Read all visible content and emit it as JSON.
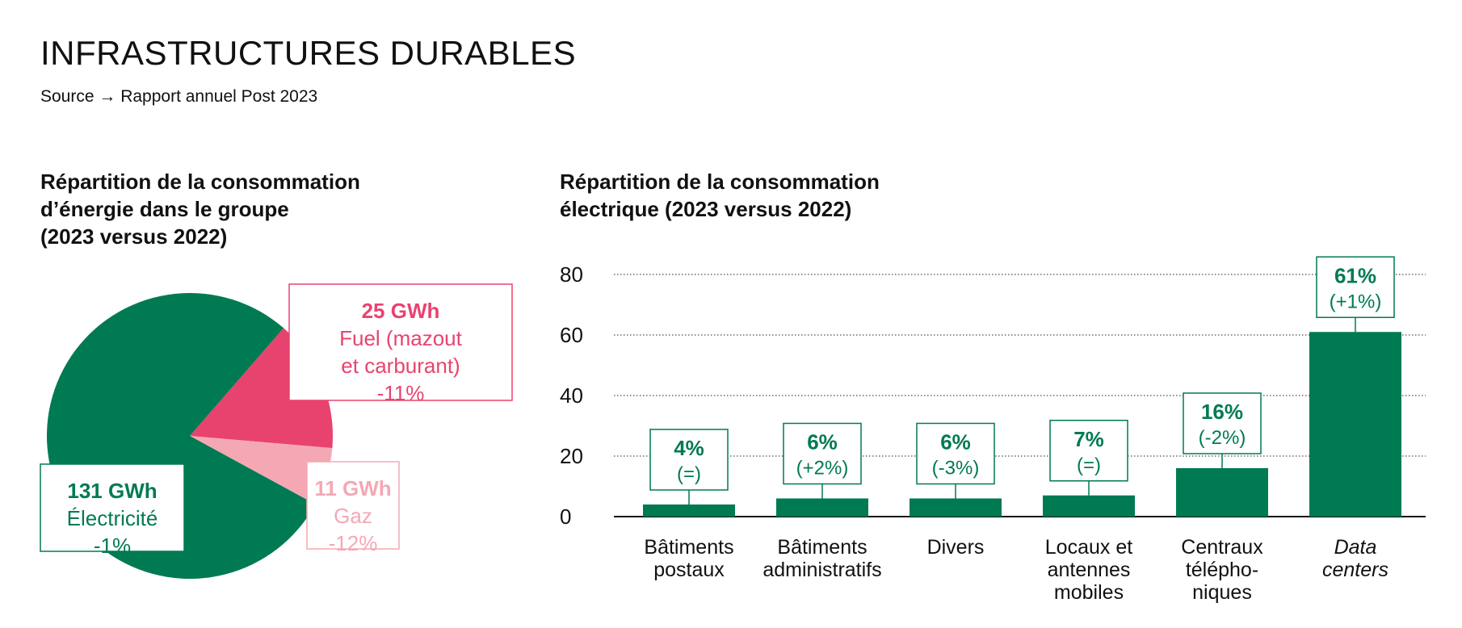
{
  "header": {
    "title": "INFRASTRUCTURES DURABLES",
    "source": "Source → Rapport annuel Post 2023"
  },
  "colors": {
    "green": "#007a52",
    "pink": "#e8436f",
    "light_pink": "#f4a8b4"
  },
  "chart_data": [
    {
      "type": "pie",
      "title": [
        "Répartition de la consommation",
        "d’énergie dans le groupe",
        "(2023 versus 2022)"
      ],
      "unit": "GWh",
      "slices": [
        {
          "value": 131,
          "value_label": "131 GWh",
          "label": "Électricité",
          "change": "-1%",
          "color": "#007a52"
        },
        {
          "value": 25,
          "value_label": "25 GWh",
          "label": "Fuel (mazout et carburant)",
          "label_lines": [
            "Fuel (mazout",
            "et carburant)"
          ],
          "change": "-11%",
          "color": "#e8436f"
        },
        {
          "value": 11,
          "value_label": "11 GWh",
          "label": "Gaz",
          "change": "-12%",
          "color": "#f4a8b4"
        }
      ]
    },
    {
      "type": "bar",
      "title": [
        "Répartition de la consommation",
        "électrique (2023 versus 2022)"
      ],
      "ylim": [
        0,
        80
      ],
      "yticks": [
        0,
        20,
        40,
        60,
        80
      ],
      "grid": true,
      "categories": [
        [
          "Bâtiments",
          "postaux"
        ],
        [
          "Bâtiments",
          "administratifs"
        ],
        [
          "Divers"
        ],
        [
          "Locaux et",
          "antennes",
          "mobiles"
        ],
        [
          "Centraux",
          "télépho-",
          "niques"
        ],
        [
          "Data",
          "centers"
        ]
      ],
      "category_italic": [
        false,
        false,
        false,
        false,
        false,
        true
      ],
      "values": [
        4,
        6,
        6,
        7,
        16,
        61
      ],
      "value_labels": [
        "4%",
        "6%",
        "6%",
        "7%",
        "16%",
        "61%"
      ],
      "changes": [
        "(=)",
        "(+2%)",
        "(-3%)",
        "(=)",
        "(-2%)",
        "(+1%)"
      ],
      "color": "#007a52"
    }
  ]
}
